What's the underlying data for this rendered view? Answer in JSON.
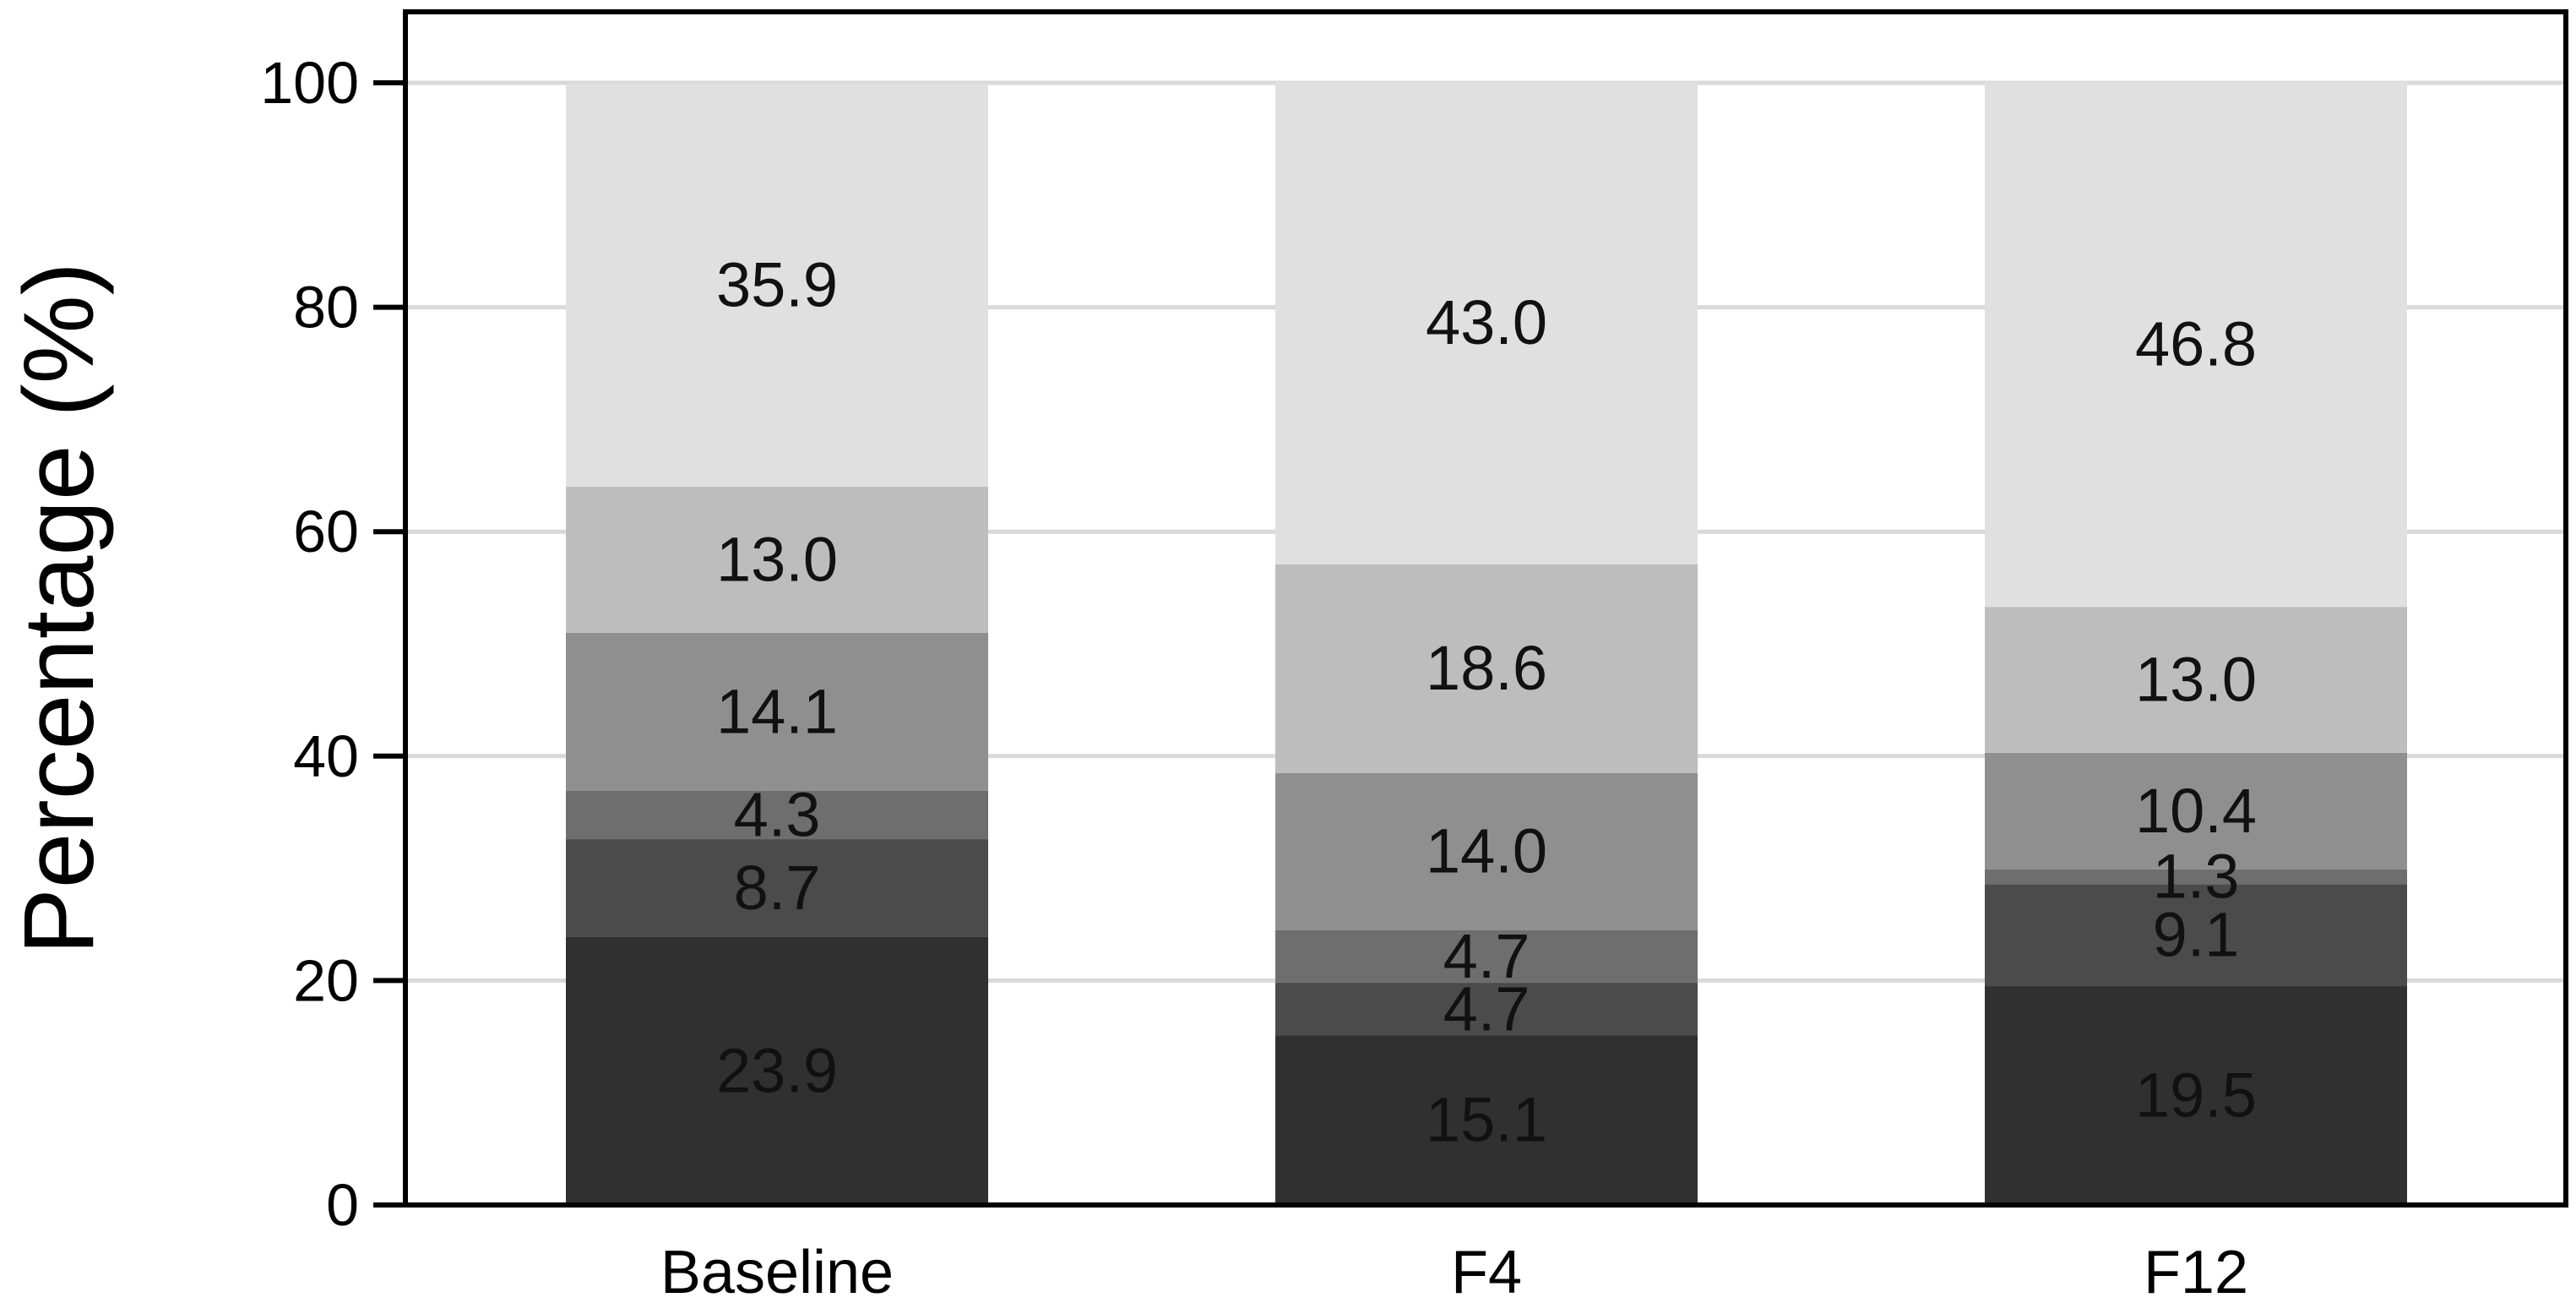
{
  "chart_data": {
    "type": "bar",
    "stacked": true,
    "title": "",
    "xlabel": "",
    "ylabel": "Percentage (%)",
    "categories": [
      "Baseline",
      "F4",
      "F12"
    ],
    "ylim": [
      0,
      100
    ],
    "yticks": [
      0,
      20,
      40,
      60,
      80,
      100
    ],
    "grid": "horizontal",
    "series": [
      {
        "values": [
          23.9,
          15.1,
          19.5
        ],
        "color": "#303030"
      },
      {
        "values": [
          8.7,
          4.7,
          9.1
        ],
        "color": "#4b4b4b"
      },
      {
        "values": [
          4.3,
          4.7,
          1.3
        ],
        "color": "#6e6e6e"
      },
      {
        "values": [
          14.1,
          14.0,
          10.4
        ],
        "color": "#8f8f8f"
      },
      {
        "values": [
          13.0,
          18.6,
          13.0
        ],
        "color": "#bdbdbd"
      },
      {
        "values": [
          35.9,
          43.0,
          46.8
        ],
        "color": "#e0e0e0"
      }
    ],
    "data_labels": [
      [
        "23.9",
        "15.1",
        "19.5"
      ],
      [
        "8.7",
        "4.7",
        "9.1"
      ],
      [
        "4.3",
        "4.7",
        "1.3"
      ],
      [
        "14.1",
        "14.0",
        "10.4"
      ],
      [
        "13.0",
        "18.6",
        "13.0"
      ],
      [
        "35.9",
        "43.0",
        "46.8"
      ]
    ]
  }
}
